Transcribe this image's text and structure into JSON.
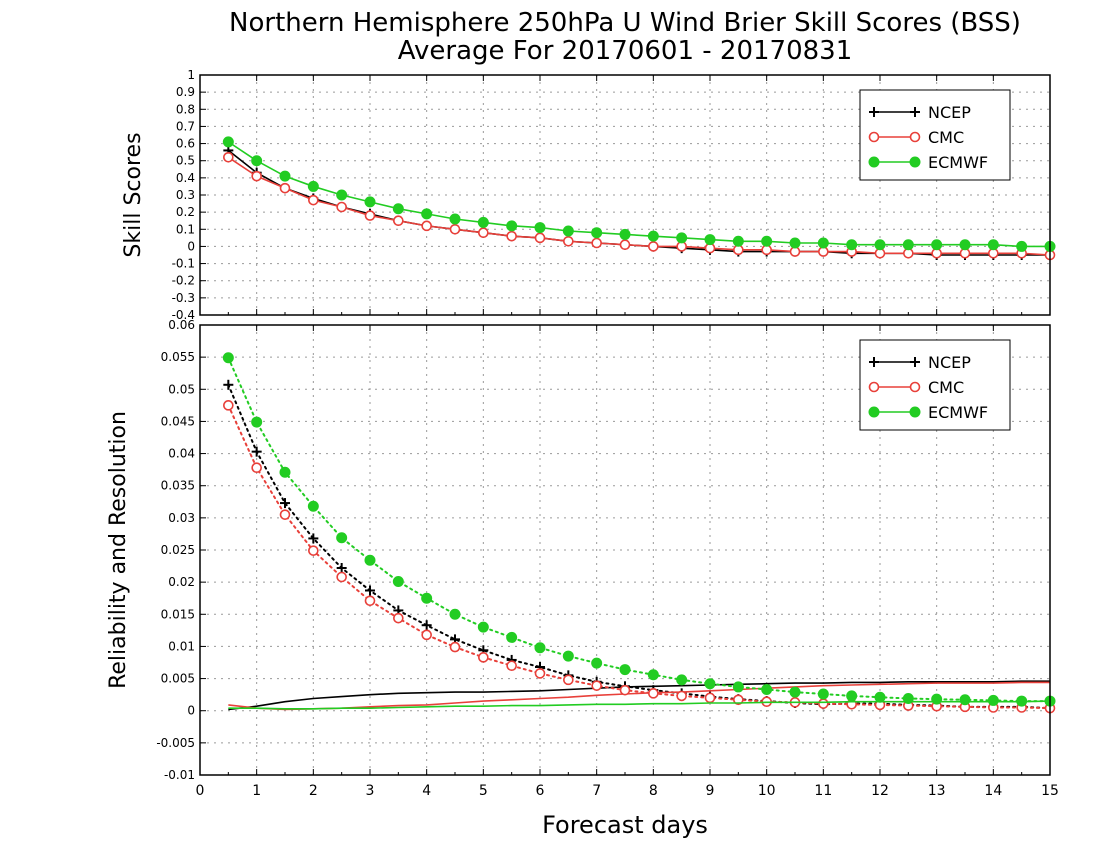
{
  "title_line1": "Northern Hemisphere 250hPa U Wind Brier Skill Scores (BSS)",
  "title_line2": "Average For 20170601 - 20170831",
  "xlabel": "Forecast days",
  "colors": {
    "NCEP": "#000000",
    "CMC": "#e8403a",
    "ECMWF": "#22cc22"
  },
  "chart_data": [
    {
      "type": "line",
      "ylabel": "Skill Scores",
      "xlim": [
        0,
        15
      ],
      "ylim": [
        -0.4,
        1
      ],
      "grid": true,
      "legend_position": "top-right",
      "x_ticks": [
        "0",
        "1",
        "2",
        "3",
        "4",
        "5",
        "6",
        "7",
        "8",
        "9",
        "10",
        "11",
        "12",
        "13",
        "14",
        "15"
      ],
      "y_ticks": [
        "-0.4",
        "-0.3",
        "-0.2",
        "-0.1",
        "0",
        "0.1",
        "0.2",
        "0.3",
        "0.4",
        "0.5",
        "0.6",
        "0.7",
        "0.8",
        "0.9",
        "1"
      ],
      "x": [
        0.5,
        1,
        1.5,
        2,
        2.5,
        3,
        3.5,
        4,
        4.5,
        5,
        5.5,
        6,
        6.5,
        7,
        7.5,
        8,
        8.5,
        9,
        9.5,
        10,
        10.5,
        11,
        11.5,
        12,
        12.5,
        13,
        13.5,
        14,
        14.5,
        15
      ],
      "series": [
        {
          "name": "NCEP",
          "marker": "plus",
          "line": "solid",
          "values": [
            0.56,
            0.43,
            0.34,
            0.28,
            0.23,
            0.19,
            0.15,
            0.12,
            0.1,
            0.08,
            0.06,
            0.05,
            0.03,
            0.02,
            0.01,
            0,
            -0.01,
            -0.02,
            -0.03,
            -0.03,
            -0.03,
            -0.03,
            -0.04,
            -0.04,
            -0.04,
            -0.05,
            -0.05,
            -0.05,
            -0.05,
            -0.05
          ]
        },
        {
          "name": "CMC",
          "marker": "open-circle",
          "line": "solid",
          "values": [
            0.52,
            0.41,
            0.34,
            0.27,
            0.23,
            0.18,
            0.15,
            0.12,
            0.1,
            0.08,
            0.06,
            0.05,
            0.03,
            0.02,
            0.01,
            0,
            0,
            -0.01,
            -0.02,
            -0.02,
            -0.03,
            -0.03,
            -0.03,
            -0.04,
            -0.04,
            -0.04,
            -0.04,
            -0.04,
            -0.04,
            -0.05
          ]
        },
        {
          "name": "ECMWF",
          "marker": "filled-circle",
          "line": "solid",
          "values": [
            0.61,
            0.5,
            0.41,
            0.35,
            0.3,
            0.26,
            0.22,
            0.19,
            0.16,
            0.14,
            0.12,
            0.11,
            0.09,
            0.08,
            0.07,
            0.06,
            0.05,
            0.04,
            0.03,
            0.03,
            0.02,
            0.02,
            0.01,
            0.01,
            0.01,
            0.01,
            0.01,
            0.01,
            0,
            0
          ]
        }
      ]
    },
    {
      "type": "line",
      "ylabel": "Reliability and Resolution",
      "xlim": [
        0,
        15
      ],
      "ylim": [
        -0.01,
        0.06
      ],
      "grid": true,
      "legend_position": "top-right",
      "x_ticks": [
        "0",
        "1",
        "2",
        "3",
        "4",
        "5",
        "6",
        "7",
        "8",
        "9",
        "10",
        "11",
        "12",
        "13",
        "14",
        "15"
      ],
      "y_ticks": [
        "-0.01",
        "-0.005",
        "0",
        "0.005",
        "0.01",
        "0.015",
        "0.02",
        "0.025",
        "0.03",
        "0.035",
        "0.04",
        "0.045",
        "0.05",
        "0.055",
        "0.06"
      ],
      "x": [
        0.5,
        1,
        1.5,
        2,
        2.5,
        3,
        3.5,
        4,
        4.5,
        5,
        5.5,
        6,
        6.5,
        7,
        7.5,
        8,
        8.5,
        9,
        9.5,
        10,
        10.5,
        11,
        11.5,
        12,
        12.5,
        13,
        13.5,
        14,
        14.5,
        15
      ],
      "series": [
        {
          "name": "NCEP",
          "metric": "reliability",
          "marker": "none",
          "line": "solid",
          "values": [
            0.0002,
            0.0007,
            0.0014,
            0.0019,
            0.0022,
            0.0025,
            0.0027,
            0.0028,
            0.0029,
            0.0029,
            0.003,
            0.0031,
            0.0033,
            0.0035,
            0.0037,
            0.0038,
            0.0039,
            0.004,
            0.0041,
            0.0042,
            0.0043,
            0.0043,
            0.0044,
            0.0044,
            0.0045,
            0.0045,
            0.0045,
            0.0045,
            0.0046,
            0.0046
          ]
        },
        {
          "name": "NCEP",
          "metric": "resolution",
          "marker": "plus",
          "line": "dotted",
          "values": [
            0.0507,
            0.0403,
            0.0323,
            0.0268,
            0.0222,
            0.0187,
            0.0156,
            0.0133,
            0.0111,
            0.0094,
            0.0079,
            0.0068,
            0.0055,
            0.0045,
            0.0038,
            0.0032,
            0.0027,
            0.0022,
            0.0018,
            0.0015,
            0.0012,
            0.001,
            0.0011,
            0.0011,
            0.0009,
            0.0008,
            0.0006,
            0.0006,
            0.0006,
            0.0004
          ]
        },
        {
          "name": "CMC",
          "metric": "reliability",
          "marker": "none",
          "line": "solid",
          "values": [
            0.0009,
            0.0004,
            0.0002,
            0.0003,
            0.0004,
            0.0006,
            0.0008,
            0.0009,
            0.0012,
            0.0015,
            0.0017,
            0.0019,
            0.0021,
            0.0024,
            0.0026,
            0.0028,
            0.0029,
            0.0031,
            0.0033,
            0.0035,
            0.0037,
            0.0039,
            0.004,
            0.0041,
            0.0042,
            0.0043,
            0.0043,
            0.0043,
            0.0044,
            0.0044
          ]
        },
        {
          "name": "CMC",
          "metric": "resolution",
          "marker": "open-circle",
          "line": "dotted",
          "values": [
            0.0475,
            0.0378,
            0.0305,
            0.0249,
            0.0208,
            0.0171,
            0.0144,
            0.0118,
            0.0099,
            0.0083,
            0.007,
            0.0058,
            0.0048,
            0.0039,
            0.0032,
            0.0027,
            0.0023,
            0.002,
            0.0017,
            0.0014,
            0.0013,
            0.0011,
            0.001,
            0.0009,
            0.0008,
            0.0007,
            0.0006,
            0.0005,
            0.0005,
            0.0004
          ]
        },
        {
          "name": "ECMWF",
          "metric": "reliability",
          "marker": "none",
          "line": "solid",
          "values": [
            0.0004,
            0.0004,
            0.0003,
            0.0003,
            0.0004,
            0.0004,
            0.0005,
            0.0006,
            0.0007,
            0.0007,
            0.0008,
            0.0008,
            0.0009,
            0.001,
            0.001,
            0.0011,
            0.0011,
            0.0012,
            0.0012,
            0.0013,
            0.0013,
            0.0013,
            0.0014,
            0.0014,
            0.0014,
            0.0014,
            0.0014,
            0.0014,
            0.0014,
            0.0015
          ]
        },
        {
          "name": "ECMWF",
          "metric": "resolution",
          "marker": "filled-circle",
          "line": "dotted",
          "values": [
            0.0549,
            0.0449,
            0.0371,
            0.0318,
            0.0269,
            0.0234,
            0.0201,
            0.0175,
            0.015,
            0.013,
            0.0114,
            0.0098,
            0.0085,
            0.0074,
            0.0064,
            0.0056,
            0.0048,
            0.0042,
            0.0037,
            0.0033,
            0.0029,
            0.0026,
            0.0023,
            0.0021,
            0.0019,
            0.0018,
            0.0017,
            0.0016,
            0.0015,
            0.0015
          ]
        }
      ]
    }
  ],
  "legend": [
    "NCEP",
    "CMC",
    "ECMWF"
  ]
}
